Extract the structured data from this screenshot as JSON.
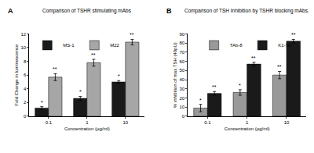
{
  "chart_data": [
    {
      "type": "bar",
      "label": "A",
      "title": "Comparison of TSHR stimulating mAbs",
      "x_label": "Concentration (µg/ml)",
      "y_label": "Fold Change in luminescence",
      "categories": [
        "0.1",
        "1",
        "10"
      ],
      "series": [
        {
          "name": "MS-1",
          "color": "#1a1a1a",
          "values": [
            1.2,
            2.6,
            5.0
          ],
          "errors": [
            0.2,
            0.3,
            0.2
          ],
          "annotations": [
            "*",
            "*",
            "*"
          ]
        },
        {
          "name": "M22",
          "color": "#a6a6a6",
          "values": [
            5.7,
            7.8,
            10.8
          ],
          "errors": [
            0.5,
            0.5,
            0.4
          ],
          "annotations": [
            "**",
            "**",
            "**"
          ]
        }
      ],
      "ylim": [
        0,
        12
      ],
      "yticks": [
        0,
        2,
        4,
        6,
        8,
        10,
        12
      ],
      "legend": "upper left"
    },
    {
      "type": "bar",
      "label": "B",
      "title": "Comparison of TSH Inhibition by TSHR blocking mAbs.",
      "x_label": "Concentration (µg/ml)",
      "y_label": "% inhibition of max TSH (40pU)",
      "categories": [
        "0.1",
        "1",
        "10"
      ],
      "series": [
        {
          "name": "TAb-8",
          "color": "#999999",
          "values": [
            9,
            26,
            45
          ],
          "errors": [
            4,
            3,
            4
          ],
          "annotations": [
            "*",
            "*",
            "**"
          ]
        },
        {
          "name": "K1-70",
          "color": "#1a1a1a",
          "values": [
            25,
            57,
            82
          ],
          "errors": [
            2,
            2,
            2
          ],
          "annotations": [
            "**",
            "**",
            "**"
          ]
        }
      ],
      "ylim": [
        0,
        90
      ],
      "yticks": [
        0,
        10,
        20,
        30,
        40,
        50,
        60,
        70,
        80,
        90
      ],
      "legend": "upper center"
    }
  ]
}
